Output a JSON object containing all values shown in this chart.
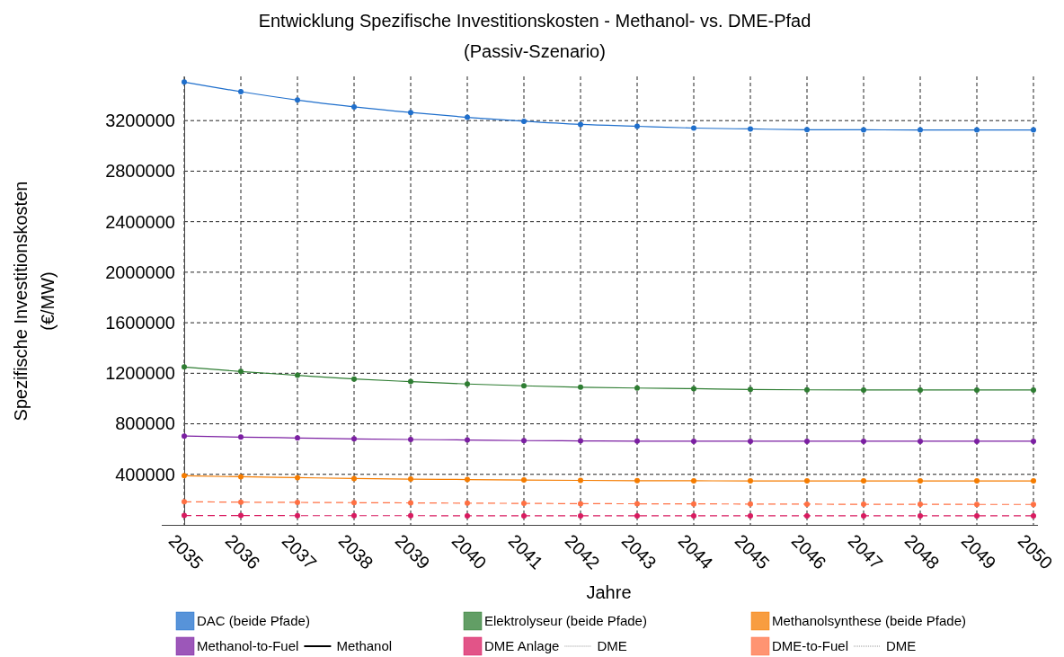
{
  "chart_data": {
    "type": "line",
    "title": "Entwicklung Spezifische Investitionskosten - Methanol- vs. DME-Pfad",
    "subtitle": "(Passiv-Szenario)",
    "xlabel": "Jahre",
    "ylabel": "Spezifische Investitionskosten\n(€/MW)",
    "x": [
      2035,
      2036,
      2037,
      2038,
      2039,
      2040,
      2041,
      2042,
      2043,
      2044,
      2045,
      2046,
      2047,
      2048,
      2049,
      2050
    ],
    "xlim": [
      2035,
      2050
    ],
    "xticks": [
      2035,
      2036,
      2037,
      2038,
      2039,
      2040,
      2041,
      2042,
      2043,
      2044,
      2045,
      2046,
      2047,
      2048,
      2049,
      2050
    ],
    "ylim": [
      0,
      3550000
    ],
    "yticks": [
      400000,
      800000,
      1200000,
      1600000,
      2000000,
      2400000,
      2800000,
      3200000
    ],
    "grid": true,
    "marker": "circle",
    "legend": "bottom",
    "annotations": [
      "Methanol",
      "DME",
      "DME"
    ],
    "series": [
      {
        "name": "DAC (beide Pfade)",
        "color": "#1f6fcc",
        "line_style": "solid",
        "values": [
          3505000,
          3429000,
          3363000,
          3309000,
          3264000,
          3226000,
          3195000,
          3170000,
          3155000,
          3141000,
          3134000,
          3128000,
          3127000,
          3126000,
          3126000,
          3126000
        ]
      },
      {
        "name": "Elektrolyseur (beide Pfade)",
        "color": "#2e7d32",
        "line_style": "solid",
        "values": [
          1250000,
          1214000,
          1184000,
          1155000,
          1134000,
          1115000,
          1101000,
          1090000,
          1083000,
          1078000,
          1072000,
          1069000,
          1068000,
          1068000,
          1068000,
          1068000
        ]
      },
      {
        "name": "Methanolsynthese (beide Pfade)",
        "color": "#f57c00",
        "line_style": "solid",
        "values": [
          389000,
          381000,
          374000,
          367000,
          362000,
          359000,
          355000,
          352000,
          350000,
          349000,
          348000,
          348000,
          348000,
          348000,
          348000,
          348000
        ]
      },
      {
        "name": "Methanol-to-Fuel",
        "color": "#7b1fa2",
        "line_style": "solid",
        "values": [
          703000,
          695000,
          688000,
          681000,
          676000,
          672000,
          667000,
          665000,
          663000,
          662000,
          662000,
          662000,
          662000,
          662000,
          662000,
          662000
        ]
      },
      {
        "name": "DME Anlage",
        "color": "#d81b60",
        "line_style": "dashed",
        "values": [
          74000,
          74000,
          73000,
          73000,
          73000,
          72000,
          72000,
          72000,
          72000,
          72000,
          72000,
          72000,
          72000,
          72000,
          72000,
          72000
        ]
      },
      {
        "name": "DME-to-Fuel",
        "color": "#ff7043",
        "line_style": "dashed",
        "values": [
          183000,
          180000,
          178000,
          176000,
          174000,
          172000,
          170000,
          168000,
          167000,
          166000,
          165000,
          164000,
          163000,
          163000,
          162000,
          162000
        ]
      }
    ]
  }
}
